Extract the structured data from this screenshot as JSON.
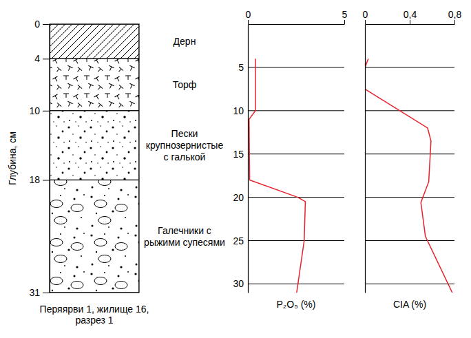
{
  "chart_data": [
    {
      "type": "column",
      "y_label": "Глубина, см",
      "ylim": [
        0,
        31
      ],
      "yticks": [
        0,
        4,
        10,
        18,
        31
      ],
      "layers": [
        "Дерн",
        "Торф",
        "Пески крупнозернистые с галькой",
        "Галечники с рыжими супесями"
      ],
      "caption": "Перяярви 1, жилище 16, разрез 1"
    },
    {
      "type": "line",
      "x_label": "P₂O₅ (%)",
      "x": [
        0.39,
        0.39,
        0.06,
        0.09,
        2.59,
        2.98,
        2.92,
        2.53
      ],
      "y": [
        4,
        10,
        11,
        18,
        20,
        20.5,
        25,
        31
      ],
      "xlim": [
        0,
        5
      ],
      "xticks": [
        0,
        5
      ],
      "ylim": [
        0,
        31
      ],
      "yticks": [
        5,
        10,
        15,
        20,
        25,
        30
      ],
      "color": "#e8202a",
      "grid": true,
      "tick_labels": true
    },
    {
      "type": "line",
      "x_label": "CIA (%)",
      "x": [
        0.03,
        0,
        0,
        0.56,
        0.59,
        0.57,
        0.5,
        0.54,
        0.78
      ],
      "y": [
        4,
        5,
        7.5,
        12,
        13.5,
        18.2,
        20.6,
        24.5,
        31
      ],
      "xlim": [
        0,
        0.8
      ],
      "xticks": [
        0,
        {
          "value": 0.4,
          "label": "0,4"
        },
        {
          "value": 0.8,
          "label": "0,8"
        }
      ],
      "ylim": [
        0,
        31
      ],
      "yticks": [
        5,
        10,
        15,
        20,
        25,
        30
      ],
      "color": "#e8202a",
      "grid": true,
      "tick_labels": "x"
    }
  ]
}
